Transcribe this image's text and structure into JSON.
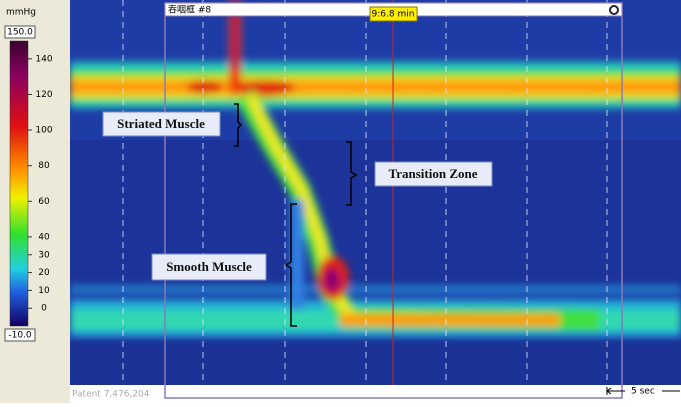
{
  "colorbar": {
    "unit": "mmHg",
    "lim": [
      -10,
      150
    ],
    "ticks": [
      {
        "value": 150,
        "label": "150.0"
      },
      140,
      120,
      100,
      80,
      60,
      40,
      30,
      20,
      10,
      0,
      {
        "value": -10,
        "label": "-10.0"
      }
    ]
  },
  "window": {
    "title": "吞咽框 #8",
    "time_marker": "9:6.8 min"
  },
  "annotations": [
    "Striated Muscle",
    "Transition Zone",
    "Smooth Muscle"
  ],
  "footer": {
    "patent": "Patent 7,476,204",
    "scale": "5 sec"
  }
}
